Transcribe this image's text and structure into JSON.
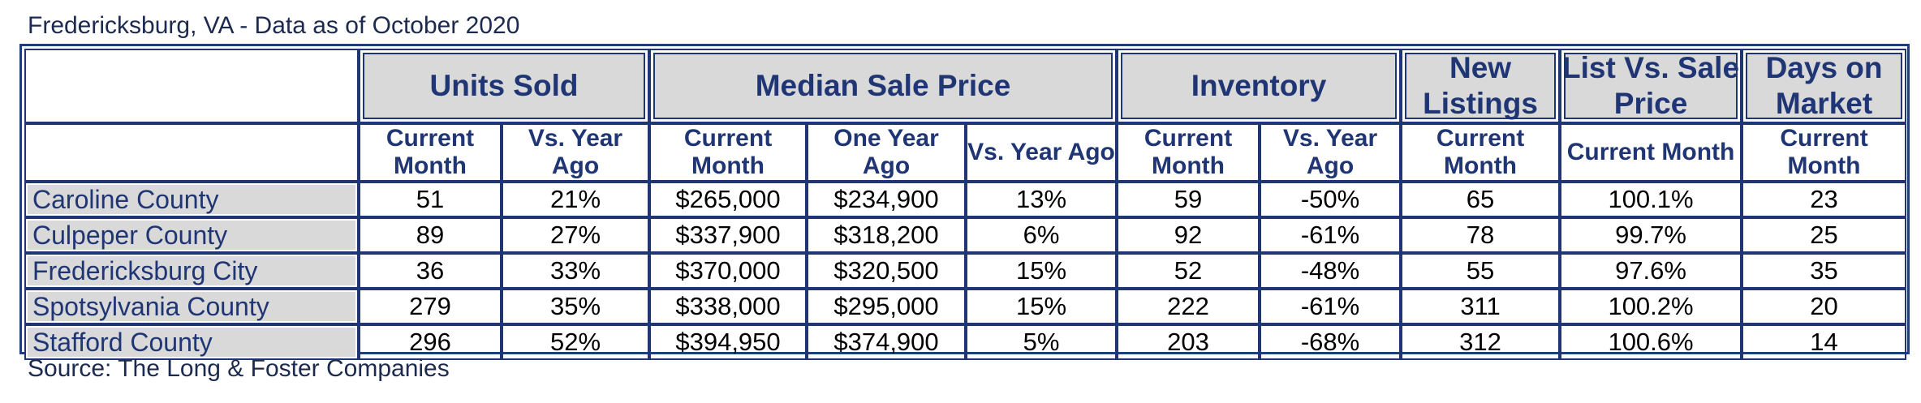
{
  "caption": "Fredericksburg, VA - Data as of October 2020",
  "source": "Source: The Long & Foster Companies",
  "colors": {
    "navy": "#1f3574",
    "header_fill": "#d9d9d9"
  },
  "groups": {
    "units_sold": "Units Sold",
    "median_sale_price": "Median Sale Price",
    "inventory": "Inventory",
    "new_listings": "New Listings",
    "list_vs_sale": "List Vs. Sale Price",
    "days_on_market": "Days on Market"
  },
  "subheaders": {
    "units_current": "Current Month",
    "units_vs_year": "Vs. Year Ago",
    "price_current": "Current Month",
    "price_one_year": "One Year Ago",
    "price_vs_year": "Vs. Year Ago",
    "inv_current": "Current Month",
    "inv_vs_year": "Vs. Year Ago",
    "new_listings_current": "Current Month",
    "list_vs_sale_current": "Current Month",
    "dom_current": "Current Month"
  },
  "rows": [
    {
      "region": "Caroline County",
      "units_current": "51",
      "units_vs_year": "21%",
      "price_current": "$265,000",
      "price_one_year": "$234,900",
      "price_vs_year": "13%",
      "inv_current": "59",
      "inv_vs_year": "-50%",
      "new_listings": "65",
      "list_vs_sale": "100.1%",
      "days_on_market": "23"
    },
    {
      "region": "Culpeper County",
      "units_current": "89",
      "units_vs_year": "27%",
      "price_current": "$337,900",
      "price_one_year": "$318,200",
      "price_vs_year": "6%",
      "inv_current": "92",
      "inv_vs_year": "-61%",
      "new_listings": "78",
      "list_vs_sale": "99.7%",
      "days_on_market": "25"
    },
    {
      "region": "Fredericksburg City",
      "units_current": "36",
      "units_vs_year": "33%",
      "price_current": "$370,000",
      "price_one_year": "$320,500",
      "price_vs_year": "15%",
      "inv_current": "52",
      "inv_vs_year": "-48%",
      "new_listings": "55",
      "list_vs_sale": "97.6%",
      "days_on_market": "35"
    },
    {
      "region": "Spotsylvania County",
      "units_current": "279",
      "units_vs_year": "35%",
      "price_current": "$338,000",
      "price_one_year": "$295,000",
      "price_vs_year": "15%",
      "inv_current": "222",
      "inv_vs_year": "-61%",
      "new_listings": "311",
      "list_vs_sale": "100.2%",
      "days_on_market": "20"
    },
    {
      "region": "Stafford County",
      "units_current": "296",
      "units_vs_year": "52%",
      "price_current": "$394,950",
      "price_one_year": "$374,900",
      "price_vs_year": "5%",
      "inv_current": "203",
      "inv_vs_year": "-68%",
      "new_listings": "312",
      "list_vs_sale": "100.6%",
      "days_on_market": "14"
    }
  ]
}
